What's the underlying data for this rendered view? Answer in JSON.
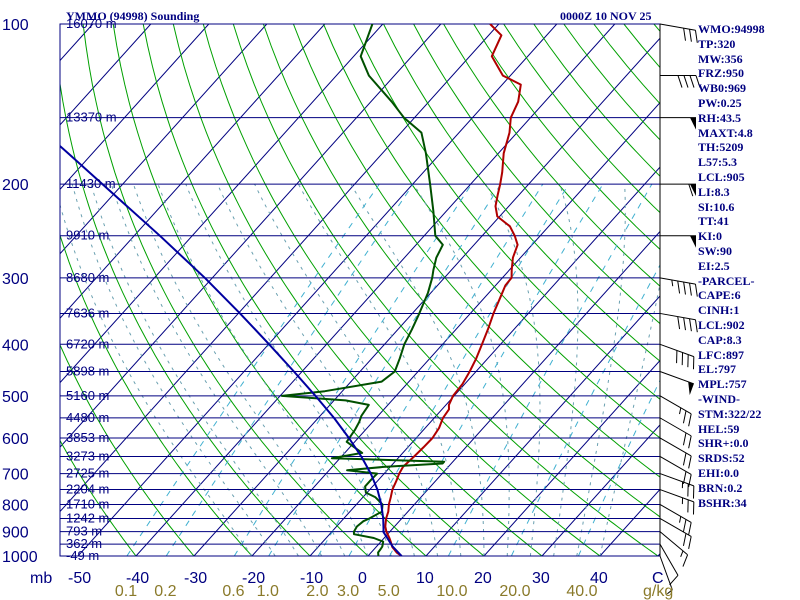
{
  "header": {
    "title": "YMMO (94998) Sounding",
    "time": "0000Z 10 NOV 25"
  },
  "units": {
    "mb": "mb",
    "temp": "C",
    "mixing": "g/kg"
  },
  "indices": [
    "WMO:94998",
    "TP:320",
    "MW:356",
    "FRZ:950",
    "WB0:969",
    "PW:0.25",
    "RH:43.5",
    "MAXT:4.8",
    "TH:5209",
    "L57:5.3",
    "LCL:905",
    "LI:8.3",
    "SI:10.6",
    "TT:41",
    "KI:0",
    "SW:90",
    "EI:2.5",
    "-PARCEL-",
    "CAPE:6",
    "CINH:1",
    "LCL:902",
    "CAP:8.3",
    "LFC:897",
    "EL:797",
    "MPL:757",
    "-WIND-",
    "STM:322/22",
    "HEL:59",
    "SHR+:0.0",
    "SRDS:52",
    "EHI:0.0",
    "BRN:0.2",
    "BSHR:34"
  ],
  "chart_data": {
    "type": "line",
    "title": "YMMO (94998) Sounding",
    "subtitle": "0000Z 10 NOV 25",
    "x_axis": {
      "label": "C",
      "range": [
        -50,
        50
      ],
      "ticks": [
        "-50",
        "-40",
        "-30",
        "-20",
        "-10",
        "0",
        "10",
        "20",
        "30",
        "40"
      ]
    },
    "y_axis": {
      "label": "mb",
      "scale": "log",
      "range": [
        1000,
        100
      ],
      "ticks": [
        "100",
        "200",
        "300",
        "400",
        "500",
        "600",
        "700",
        "800",
        "900",
        "1000"
      ]
    },
    "mixing_ratio_labels": [
      "0.1",
      "0.2",
      "0.6",
      "1.0",
      "2.0",
      "3.0",
      "5.0",
      "10.0",
      "20.0",
      "40.0"
    ],
    "mixing_ratio_unit": "g/kg",
    "height_levels": [
      {
        "p": 100,
        "label": "16070 m"
      },
      {
        "p": 150,
        "label": "13370 m"
      },
      {
        "p": 200,
        "label": "11430 m"
      },
      {
        "p": 250,
        "label": "9910 m"
      },
      {
        "p": 300,
        "label": "8680 m"
      },
      {
        "p": 350,
        "label": "7636 m"
      },
      {
        "p": 400,
        "label": "6720 m"
      },
      {
        "p": 450,
        "label": "5898 m"
      },
      {
        "p": 500,
        "label": "5160 m"
      },
      {
        "p": 550,
        "label": "4480 m"
      },
      {
        "p": 600,
        "label": "3853 m"
      },
      {
        "p": 650,
        "label": "3273 m"
      },
      {
        "p": 700,
        "label": "2725 m"
      },
      {
        "p": 750,
        "label": "2204 m"
      },
      {
        "p": 800,
        "label": "1710 m"
      },
      {
        "p": 850,
        "label": "1242 m"
      },
      {
        "p": 900,
        "label": "793 m"
      },
      {
        "p": 950,
        "label": "362 m"
      },
      {
        "p": 1000,
        "label": "-49 m"
      }
    ],
    "series": [
      {
        "color": "#b00000",
        "points": [
          [
            1000,
            5.8
          ],
          [
            985,
            4.4
          ],
          [
            962,
            2.8
          ],
          [
            940,
            1.7
          ],
          [
            925,
            0.9
          ],
          [
            900,
            -0.6
          ],
          [
            880,
            -1.6
          ],
          [
            850,
            -2.7
          ],
          [
            825,
            -3.4
          ],
          [
            800,
            -4.4
          ],
          [
            775,
            -5.2
          ],
          [
            750,
            -6.1
          ],
          [
            725,
            -6.7
          ],
          [
            700,
            -7.4
          ],
          [
            680,
            -7.8
          ],
          [
            650,
            -7.5
          ],
          [
            625,
            -7.3
          ],
          [
            600,
            -7.2
          ],
          [
            575,
            -7.6
          ],
          [
            550,
            -8.5
          ],
          [
            530,
            -8.8
          ],
          [
            520,
            -9.5
          ],
          [
            500,
            -10.2
          ],
          [
            475,
            -10.4
          ],
          [
            450,
            -11.1
          ],
          [
            425,
            -12.0
          ],
          [
            400,
            -13.2
          ],
          [
            375,
            -14.5
          ],
          [
            350,
            -16.0
          ],
          [
            325,
            -17.4
          ],
          [
            310,
            -18.3
          ],
          [
            300,
            -18.4
          ],
          [
            290,
            -19.6
          ],
          [
            275,
            -21.3
          ],
          [
            260,
            -22.5
          ],
          [
            250,
            -24.4
          ],
          [
            240,
            -26.7
          ],
          [
            230,
            -30.4
          ],
          [
            220,
            -32.3
          ],
          [
            210,
            -33.6
          ],
          [
            200,
            -34.9
          ],
          [
            190,
            -36.4
          ],
          [
            175,
            -39.1
          ],
          [
            160,
            -41.3
          ],
          [
            150,
            -43.4
          ],
          [
            140,
            -44.6
          ],
          [
            130,
            -46.8
          ],
          [
            125,
            -51.3
          ],
          [
            115,
            -56.2
          ],
          [
            105,
            -57.8
          ],
          [
            100,
            -61.5
          ]
        ]
      },
      {
        "color": "#005000",
        "points": [
          [
            1000,
            1.8
          ],
          [
            985,
            1.2
          ],
          [
            970,
            1.1
          ],
          [
            960,
            1.0
          ],
          [
            940,
            0.4
          ],
          [
            925,
            -1.8
          ],
          [
            910,
            -5.8
          ],
          [
            900,
            -6.2
          ],
          [
            880,
            -6.5
          ],
          [
            860,
            -6.2
          ],
          [
            850,
            -5.6
          ],
          [
            825,
            -4.5
          ],
          [
            800,
            -5.5
          ],
          [
            775,
            -7.9
          ],
          [
            760,
            -10.2
          ],
          [
            740,
            -11.3
          ],
          [
            720,
            -11.3
          ],
          [
            700,
            -11.2
          ],
          [
            690,
            -16.9
          ],
          [
            680,
            -11.1
          ],
          [
            670,
            -1.5
          ],
          [
            665,
            -1.5
          ],
          [
            655,
            -21.4
          ],
          [
            640,
            -17.0
          ],
          [
            610,
            -21.4
          ],
          [
            580,
            -21.8
          ],
          [
            560,
            -22.3
          ],
          [
            545,
            -22.9
          ],
          [
            520,
            -23.3
          ],
          [
            510,
            -28.0
          ],
          [
            500,
            -39.7
          ],
          [
            490,
            -33.0
          ],
          [
            470,
            -24.7
          ],
          [
            450,
            -24.0
          ],
          [
            425,
            -25.2
          ],
          [
            400,
            -26.6
          ],
          [
            375,
            -27.6
          ],
          [
            350,
            -28.8
          ],
          [
            320,
            -30.5
          ],
          [
            300,
            -32.1
          ],
          [
            290,
            -33.1
          ],
          [
            275,
            -34.5
          ],
          [
            260,
            -35.4
          ],
          [
            250,
            -38.1
          ],
          [
            225,
            -42.2
          ],
          [
            200,
            -47.0
          ],
          [
            175,
            -52.5
          ],
          [
            160,
            -56.5
          ],
          [
            150,
            -61.8
          ],
          [
            140,
            -66.4
          ],
          [
            125,
            -74.4
          ],
          [
            115,
            -78.8
          ],
          [
            100,
            -81.8
          ]
        ]
      },
      {
        "color": "#0000a0",
        "points": [
          [
            1000,
            5.8
          ],
          [
            960,
            2.8
          ],
          [
            902,
            -1.0
          ],
          [
            850,
            -3.2
          ],
          [
            800,
            -5.7
          ],
          [
            750,
            -8.7
          ],
          [
            700,
            -12.3
          ],
          [
            650,
            -16.6
          ],
          [
            600,
            -21.6
          ],
          [
            550,
            -27.3
          ],
          [
            500,
            -33.9
          ],
          [
            450,
            -41.4
          ],
          [
            400,
            -49.9
          ],
          [
            350,
            -59.7
          ],
          [
            300,
            -71.3
          ],
          [
            250,
            -85.6
          ],
          [
            200,
            -103.5
          ],
          [
            175,
            -114.2
          ],
          [
            150,
            -126.6
          ],
          [
            125,
            -141.2
          ],
          [
            110,
            -151.3
          ]
        ]
      }
    ],
    "wind_barbs": [
      {
        "p": 1000,
        "dir": 340,
        "spd": 5
      },
      {
        "p": 950,
        "dir": 330,
        "spd": 10
      },
      {
        "p": 900,
        "dir": 310,
        "spd": 15
      },
      {
        "p": 850,
        "dir": 300,
        "spd": 20
      },
      {
        "p": 800,
        "dir": 300,
        "spd": 25
      },
      {
        "p": 750,
        "dir": 290,
        "spd": 25
      },
      {
        "p": 700,
        "dir": 290,
        "spd": 25
      },
      {
        "p": 650,
        "dir": 300,
        "spd": 20
      },
      {
        "p": 600,
        "dir": 300,
        "spd": 20
      },
      {
        "p": 550,
        "dir": 300,
        "spd": 20
      },
      {
        "p": 500,
        "dir": 300,
        "spd": 25
      },
      {
        "p": 450,
        "dir": 290,
        "spd": 50
      },
      {
        "p": 400,
        "dir": 290,
        "spd": 40
      },
      {
        "p": 350,
        "dir": 280,
        "spd": 40
      },
      {
        "p": 300,
        "dir": 280,
        "spd": 45
      },
      {
        "p": 250,
        "dir": 270,
        "spd": 50
      },
      {
        "p": 200,
        "dir": 270,
        "spd": 60
      },
      {
        "p": 150,
        "dir": 270,
        "spd": 50
      },
      {
        "p": 125,
        "dir": 270,
        "spd": 40
      },
      {
        "p": 100,
        "dir": 280,
        "spd": 30
      }
    ],
    "colors": {
      "isobar": "#000080",
      "isotherm": "#000080",
      "dry_adiabat": "#00a000",
      "moist_adiabat": "#6aa0b0",
      "mixing_ratio": "#40b0d0",
      "wind": "#000000"
    }
  }
}
